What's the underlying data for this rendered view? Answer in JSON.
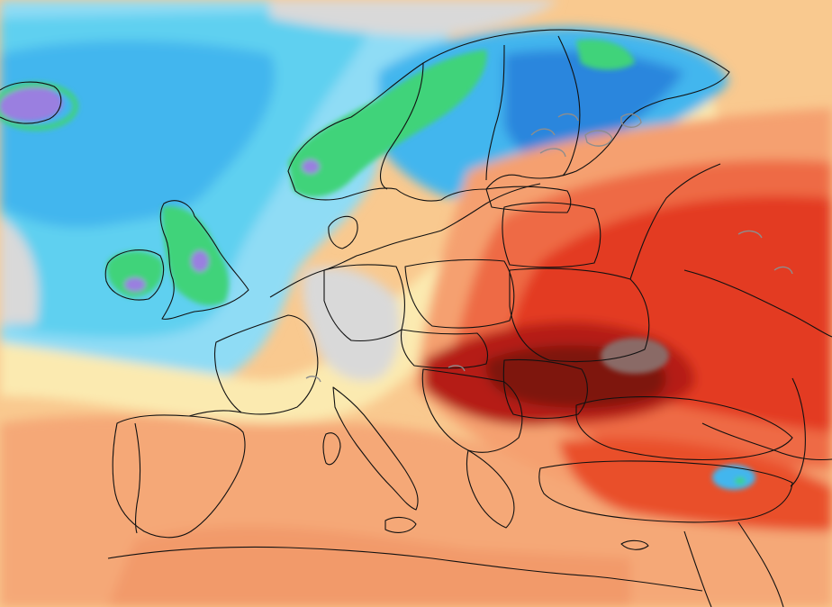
{
  "map": {
    "type": "temperature-anomaly-field",
    "region": "Europe",
    "has_text_labels": false,
    "colors": {
      "no_data_grey": "#d9d9d9",
      "light_blue": "#8fdcf5",
      "cyan": "#5fd0f0",
      "mid_blue": "#43b6ee",
      "deep_blue": "#2b86dd",
      "green": "#3fd37a",
      "dark_green": "#1fae55",
      "violet": "#9a7fe0",
      "pale_yellow": "#fbeab0",
      "light_orange": "#f9c98f",
      "orange": "#f5a070",
      "red_orange": "#ee6a45",
      "red": "#e33b22",
      "dark_red": "#b51f14",
      "maroon": "#7e1410",
      "brown_grey": "#8a6a66",
      "border_black": "#111111",
      "lake_grey": "#8d8d8d"
    }
  }
}
